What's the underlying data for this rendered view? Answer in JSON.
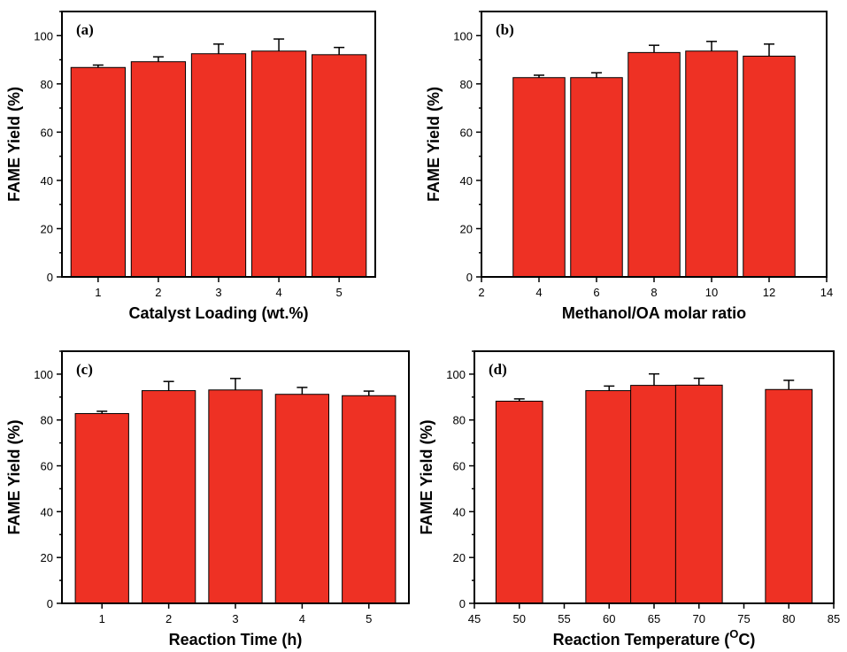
{
  "colors": {
    "bar_fill": "#ee3124",
    "bar_stroke": "#000000",
    "axis": "#000000"
  },
  "chart_data": [
    {
      "type": "bar",
      "panel_label": "(a)",
      "xlabel": "Catalyst Loading (wt.%)",
      "ylabel": "FAME Yield (%)",
      "x": [
        1,
        2,
        3,
        4,
        5
      ],
      "values": [
        86.8,
        89.2,
        92.5,
        93.6,
        92.1
      ],
      "errors": [
        1.0,
        2.0,
        4.0,
        5.0,
        3.0
      ],
      "xlim": [
        0.4,
        5.6
      ],
      "ylim": [
        0,
        110
      ],
      "xticks": [
        1,
        2,
        3,
        4,
        5
      ],
      "yticks": [
        0,
        20,
        40,
        60,
        80,
        100
      ],
      "bar_width": 0.9
    },
    {
      "type": "bar",
      "panel_label": "(b)",
      "xlabel": "Methanol/OA molar ratio",
      "ylabel": "FAME Yield (%)",
      "x": [
        4,
        6,
        8,
        10,
        12
      ],
      "values": [
        82.6,
        82.6,
        93.0,
        93.6,
        91.5
      ],
      "errors": [
        1.0,
        2.0,
        3.0,
        4.0,
        5.0
      ],
      "xlim": [
        2,
        14
      ],
      "ylim": [
        0,
        110
      ],
      "xticks": [
        2,
        4,
        6,
        8,
        10,
        12,
        14
      ],
      "yticks": [
        0,
        20,
        40,
        60,
        80,
        100
      ],
      "bar_width": 1.8
    },
    {
      "type": "bar",
      "panel_label": "(c)",
      "xlabel": "Reaction Time (h)",
      "ylabel": "FAME Yield (%)",
      "x": [
        1,
        2,
        3,
        4,
        5
      ],
      "values": [
        82.8,
        92.8,
        93.1,
        91.2,
        90.6
      ],
      "errors": [
        1.0,
        4.0,
        5.0,
        3.0,
        2.0
      ],
      "xlim": [
        0.4,
        5.6
      ],
      "ylim": [
        0,
        110
      ],
      "xticks": [
        1,
        2,
        3,
        4,
        5
      ],
      "yticks": [
        0,
        20,
        40,
        60,
        80,
        100
      ],
      "bar_width": 0.8
    },
    {
      "type": "bar",
      "panel_label": "(d)",
      "xlabel": "Reaction Temperature (",
      "xlabel_sup": "O",
      "xlabel_end": "C)",
      "ylabel": "FAME Yield (%)",
      "x": [
        50,
        60,
        65,
        70,
        80
      ],
      "values": [
        88.2,
        92.8,
        95.1,
        95.2,
        93.3
      ],
      "errors": [
        1.0,
        2.0,
        5.0,
        3.0,
        4.0
      ],
      "xlim": [
        45,
        85
      ],
      "ylim": [
        0,
        110
      ],
      "xticks": [
        45,
        50,
        55,
        60,
        65,
        70,
        75,
        80,
        85
      ],
      "yticks": [
        0,
        20,
        40,
        60,
        80,
        100
      ],
      "bar_width": 5.2
    }
  ]
}
